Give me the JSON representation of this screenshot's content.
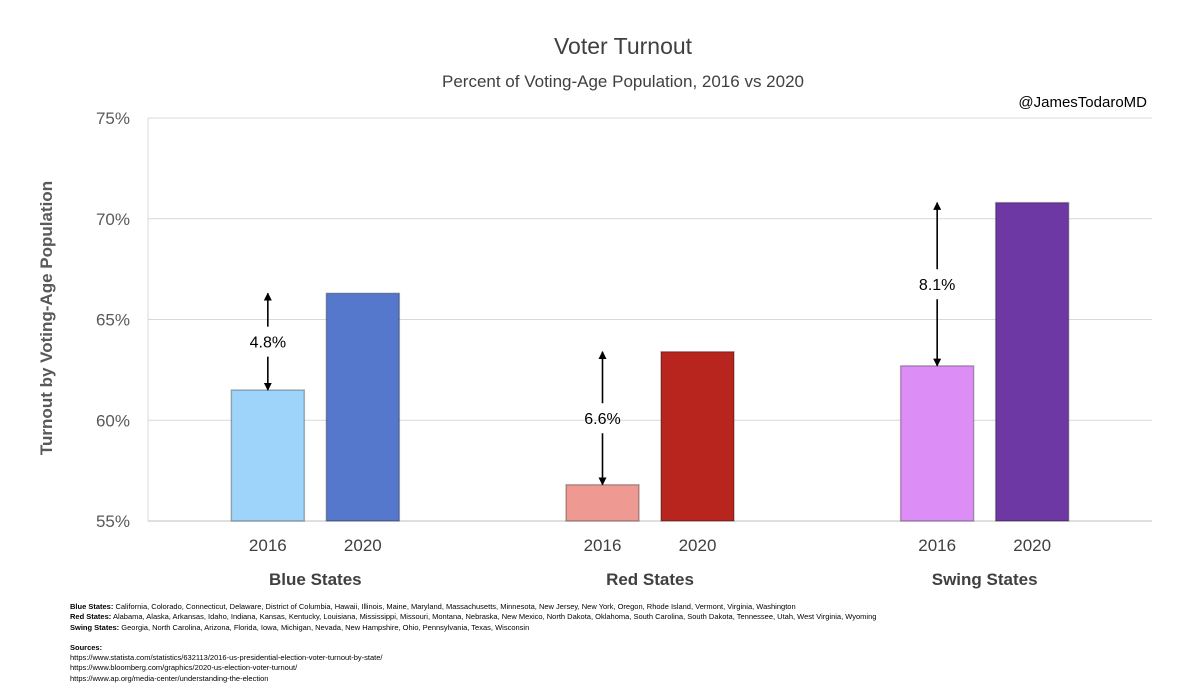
{
  "chart_data": {
    "type": "bar",
    "title": "Voter Turnout",
    "subtitle": "Percent of Voting-Age Population, 2016 vs 2020",
    "credit": "@JamesTodaroMD",
    "ylabel": "Turnout by Voting-Age Population",
    "ylim": [
      55,
      75
    ],
    "yticks": [
      55,
      60,
      65,
      70,
      75
    ],
    "ytick_labels": [
      "55%",
      "60%",
      "65%",
      "70%",
      "75%"
    ],
    "grid": true,
    "legend": "none",
    "groups": [
      {
        "name": "Blue States",
        "change_label": "4.8%",
        "bars": [
          {
            "label": "2016",
            "value": 61.5,
            "color": "#9fd4fa"
          },
          {
            "label": "2020",
            "value": 66.3,
            "color": "#5578cc"
          }
        ]
      },
      {
        "name": "Red States",
        "change_label": "6.6%",
        "bars": [
          {
            "label": "2016",
            "value": 56.8,
            "color": "#ee9a93"
          },
          {
            "label": "2020",
            "value": 63.4,
            "color": "#b8241e"
          }
        ]
      },
      {
        "name": "Swing States",
        "change_label": "8.1%",
        "bars": [
          {
            "label": "2016",
            "value": 62.7,
            "color": "#dd8ef6"
          },
          {
            "label": "2020",
            "value": 70.8,
            "color": "#6d37a4"
          }
        ]
      }
    ]
  },
  "notes": {
    "blue_label": "Blue States:",
    "blue_list": "California, Colorado, Connecticut, Delaware, District of Columbia, Hawaii, Illinois, Maine, Maryland, Massachusetts, Minnesota, New Jersey, New York, Oregon, Rhode Island, Vermont, Virginia, Washington",
    "red_label": "Red States:",
    "red_list": "Alabama, Alaska, Arkansas, Idaho, Indiana, Kansas, Kentucky, Louisiana, Mississippi, Missouri, Montana, Nebraska, New Mexico, North Dakota, Oklahoma, South Carolina, South Dakota, Tennessee, Utah, West Virginia, Wyoming",
    "swing_label": "Swing States:",
    "swing_list": "Georgia, North Carolina, Arizona, Florida, Iowa, Michigan, Nevada, New Hampshire, Ohio, Pennsylvania, Texas, Wisconsin",
    "sources_label": "Sources:",
    "sources": [
      "https://www.statista.com/statistics/632113/2016-us-presidential-election-voter-turnout-by-state/",
      "https://www.bloomberg.com/graphics/2020-us-election-voter-turnout/",
      "https://www.ap.org/media-center/understanding-the-election"
    ]
  }
}
